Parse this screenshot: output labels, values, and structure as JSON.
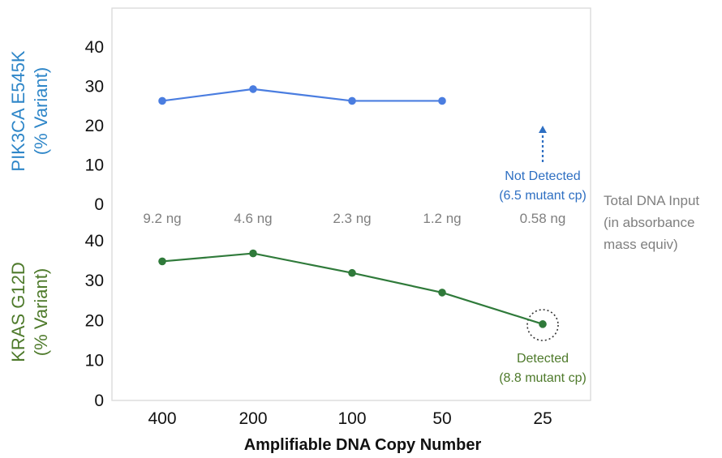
{
  "chart_data": [
    {
      "type": "line",
      "ylabel_line1": "PIK3CA E545K",
      "ylabel_line2": "(% Variant)",
      "ylim": [
        0,
        40
      ],
      "yticks": [
        "0",
        "10",
        "20",
        "30",
        "40"
      ],
      "categories": [
        "9.2 ng",
        "4.6 ng",
        "2.3 ng",
        "1.2 ng",
        "0.58 ng"
      ],
      "secondary_axis_label": [
        "Total DNA Input",
        "(in absorbance",
        "mass equiv)"
      ],
      "series": [
        {
          "values": [
            26.3,
            29.3,
            26.3,
            26.3,
            null
          ]
        }
      ],
      "annotation": {
        "category": "0.58 ng",
        "lines": [
          "Not Detected",
          "(6.5 mutant cp)"
        ]
      },
      "color": "#4a7de0",
      "label_color": "#2e86c8"
    },
    {
      "type": "line",
      "ylabel_line1": "KRAS G12D",
      "ylabel_line2": "(% Variant)",
      "ylim": [
        0,
        40
      ],
      "yticks": [
        "0",
        "10",
        "20",
        "30",
        "40"
      ],
      "categories": [
        "400",
        "200",
        "100",
        "50",
        "25"
      ],
      "xlabel": "Amplifiable DNA Copy Number",
      "series": [
        {
          "values": [
            34.8,
            36.8,
            31.9,
            27.0,
            19.1
          ]
        }
      ],
      "annotation": {
        "category": "25",
        "lines": [
          "Detected",
          "(8.8 mutant cp)"
        ]
      },
      "color": "#2f7a3a",
      "label_color": "#4e7a2b"
    }
  ]
}
